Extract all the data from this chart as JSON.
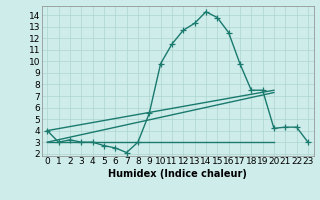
{
  "xlabel": "Humidex (Indice chaleur)",
  "bg_color": "#ceecea",
  "line_color": "#1a7a6e",
  "grid_color": "#aed4d0",
  "xlim": [
    -0.5,
    23.5
  ],
  "ylim": [
    1.8,
    14.8
  ],
  "xticks": [
    0,
    1,
    2,
    3,
    4,
    5,
    6,
    7,
    8,
    9,
    10,
    11,
    12,
    13,
    14,
    15,
    16,
    17,
    18,
    19,
    20,
    21,
    22,
    23
  ],
  "yticks": [
    2,
    3,
    4,
    5,
    6,
    7,
    8,
    9,
    10,
    11,
    12,
    13,
    14
  ],
  "line1_x": [
    0,
    1,
    2,
    3,
    4,
    5,
    6,
    7,
    8,
    9,
    10,
    11,
    12,
    13,
    14,
    15,
    16,
    17,
    18,
    19,
    20,
    21,
    22,
    23
  ],
  "line1_y": [
    4.0,
    3.0,
    3.2,
    3.0,
    3.0,
    2.7,
    2.5,
    2.1,
    3.0,
    5.5,
    9.8,
    11.5,
    12.7,
    13.3,
    14.3,
    13.8,
    12.5,
    9.8,
    7.5,
    7.5,
    4.2,
    4.3,
    4.3,
    3.0
  ],
  "line2_x": [
    0,
    20
  ],
  "line2_y": [
    4.0,
    7.5
  ],
  "line3_x": [
    0,
    20
  ],
  "line3_y": [
    3.0,
    7.3
  ],
  "line4_x": [
    0,
    20
  ],
  "line4_y": [
    3.0,
    3.0
  ],
  "marker_size": 4,
  "line_width": 1.0,
  "font_size": 6.5
}
